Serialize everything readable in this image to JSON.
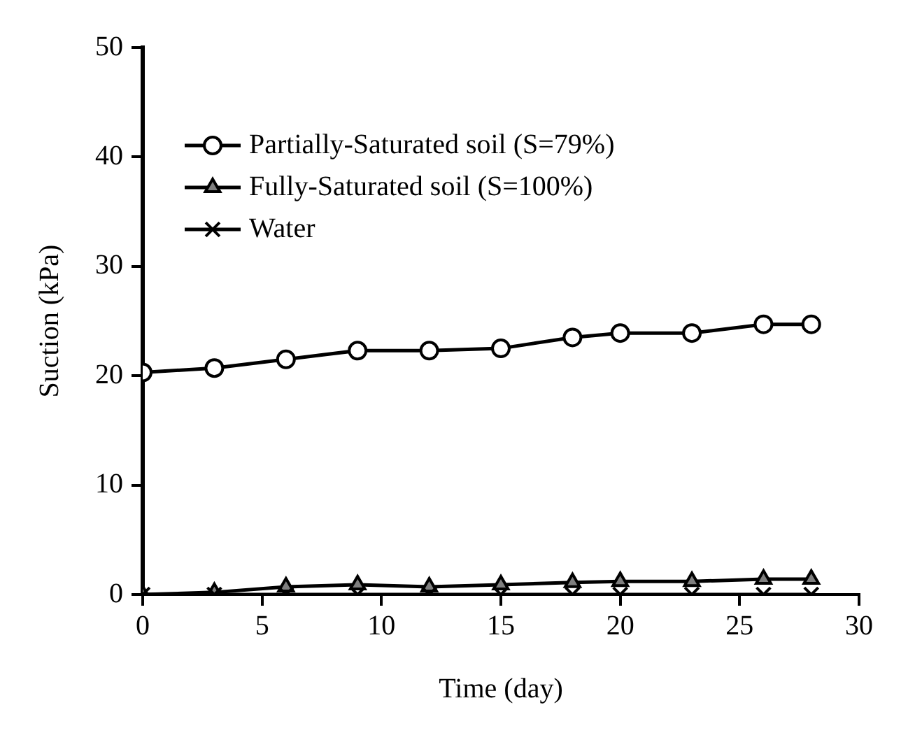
{
  "chart_data": {
    "type": "line",
    "xlabel": "Time (day)",
    "ylabel": "Suction (kPa)",
    "x": [
      0,
      3,
      6,
      9,
      12,
      15,
      18,
      20,
      23,
      26,
      28
    ],
    "series": [
      {
        "name": "Partially-Saturated soil (S=79%)",
        "color": "#ffffff",
        "marker": "circle",
        "values": [
          20.3,
          20.7,
          21.5,
          22.3,
          22.3,
          22.5,
          23.5,
          23.9,
          23.9,
          24.7,
          24.7
        ]
      },
      {
        "name": "Fully-Saturated soil (S=100%)",
        "color": "#7f7f7f",
        "marker": "triangle",
        "values": [
          0,
          0.2,
          0.7,
          0.9,
          0.7,
          0.9,
          1.1,
          1.2,
          1.2,
          1.4,
          1.4
        ]
      },
      {
        "name": "Water",
        "color": "#000000",
        "marker": "cross",
        "values": [
          0,
          0,
          0,
          0,
          0,
          0,
          0,
          0,
          0,
          0,
          0
        ]
      }
    ],
    "xlim": [
      0,
      30
    ],
    "xticks": [
      0,
      5,
      10,
      15,
      20,
      25,
      30
    ],
    "ylim": [
      0,
      50
    ],
    "yticks": [
      0,
      10,
      20,
      30,
      40,
      50
    ],
    "grid": false,
    "legend": "top left",
    "line_style": "solid"
  }
}
